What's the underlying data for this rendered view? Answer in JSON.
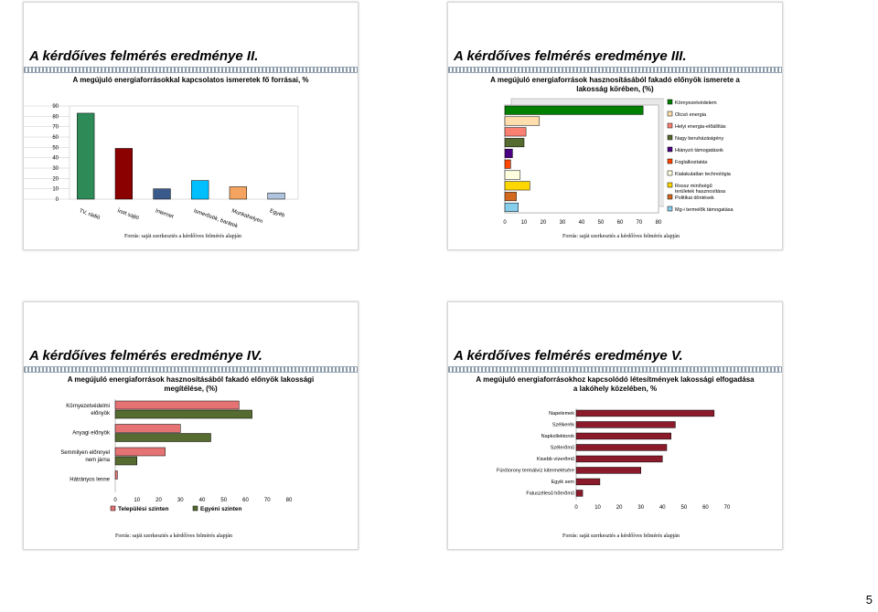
{
  "page_number": "5",
  "slides": [
    {
      "title": "A kérdőíves felmérés eredménye II.",
      "subtitle": "A megújuló energiaforrásokkal kapcsolatos ismeretek fő forrásai, %",
      "source": "Forrás: saját szerkesztés a kérdőíves felmérés alapján"
    },
    {
      "title": "A kérdőíves felmérés eredménye III.",
      "subtitle": "A megújuló energiaforrások hasznosításából fakadó előnyök ismerete a lakosság körében, (%)",
      "source": "Forrás: saját szerkesztés a kérdőíves felmérés alapján"
    },
    {
      "title": "A kérdőíves felmérés eredménye IV.",
      "subtitle": "A megújuló energiaforrások hasznosításából fakadó előnyök lakossági megítélése, (%)",
      "source": "Forrás: saját szerkesztés a kérdőíves felmérés alapján"
    },
    {
      "title": "A kérdőíves felmérés eredménye V.",
      "subtitle": "A megújuló energiaforrásokhoz kapcsolódó létesítmények lakossági elfogadása a lakóhely közelében, %",
      "source": "Forrás: saját szerkesztés a kérdőíves felmérés alapján"
    }
  ],
  "chart_data": [
    {
      "type": "bar",
      "categories": [
        "TV, rádió",
        "Írott sajtó",
        "Internet",
        "Ismerősök, barátok",
        "Munkahelyen",
        "Egyéb"
      ],
      "values": [
        83,
        49,
        10,
        18,
        12,
        6
      ],
      "colors": [
        "#2e8b57",
        "#8b0000",
        "#3a5a8c",
        "#00bfff",
        "#f4a460",
        "#b0c4de"
      ],
      "ylim": [
        0,
        90
      ],
      "yticks": [
        "0",
        "10",
        "20",
        "30",
        "40",
        "50",
        "60",
        "70",
        "80",
        "90"
      ]
    },
    {
      "type": "bar",
      "orientation": "horizontal",
      "categories": [
        "Környezetvédelem",
        "Olcsó energia",
        "Helyi energia-előállítás",
        "Nagy beruházásigény",
        "Hiányzó támogatások",
        "Foglalkoztatás",
        "Kialakulatlan technológia",
        "Rossz minőségű területek hasznosítása",
        "Politikai döntések",
        "Mg-i termelők támogatása"
      ],
      "values": [
        72,
        18,
        11,
        10,
        4,
        3,
        8,
        13,
        6,
        7
      ],
      "colors": [
        "#008000",
        "#ffdead",
        "#fa8072",
        "#556b2f",
        "#4b0082",
        "#ff4500",
        "#ffffe0",
        "#ffd700",
        "#d2691e",
        "#87ceeb"
      ],
      "xlim": [
        0,
        80
      ],
      "xticks": [
        "0",
        "10",
        "20",
        "30",
        "40",
        "50",
        "60",
        "70",
        "80"
      ]
    },
    {
      "type": "bar",
      "orientation": "horizontal",
      "categories": [
        "Környezetvédelmi előnyök",
        "Anyagi előnyök",
        "Semmilyen előnnyel nem járna",
        "Hátrányos lenne"
      ],
      "series": [
        {
          "name": "Települési szinten",
          "values": [
            57,
            30,
            23,
            1
          ],
          "color": "#e57373"
        },
        {
          "name": "Egyéni szinten",
          "values": [
            63,
            44,
            10,
            0
          ],
          "color": "#556b2f"
        }
      ],
      "xlim": [
        0,
        80
      ],
      "xticks": [
        "0",
        "10",
        "20",
        "30",
        "40",
        "50",
        "60",
        "70",
        "80"
      ]
    },
    {
      "type": "bar",
      "orientation": "horizontal",
      "categories": [
        "Napelemek",
        "Szélkerék",
        "Napkollektorok",
        "Szélerőmű",
        "Kisebb vízerőmű",
        "Fúrótorony termálvíz kitermelésére",
        "Egyik sem",
        "Faluszélesű hőerőmű"
      ],
      "values": [
        64,
        46,
        44,
        42,
        40,
        30,
        11,
        3
      ],
      "colors": [
        "#8b1a2b",
        "#8b1a2b",
        "#8b1a2b",
        "#8b1a2b",
        "#8b1a2b",
        "#8b1a2b",
        "#8b1a2b",
        "#8b1a2b"
      ],
      "xlim": [
        0,
        70
      ],
      "xticks": [
        "0",
        "10",
        "20",
        "30",
        "40",
        "50",
        "60",
        "70"
      ]
    }
  ]
}
